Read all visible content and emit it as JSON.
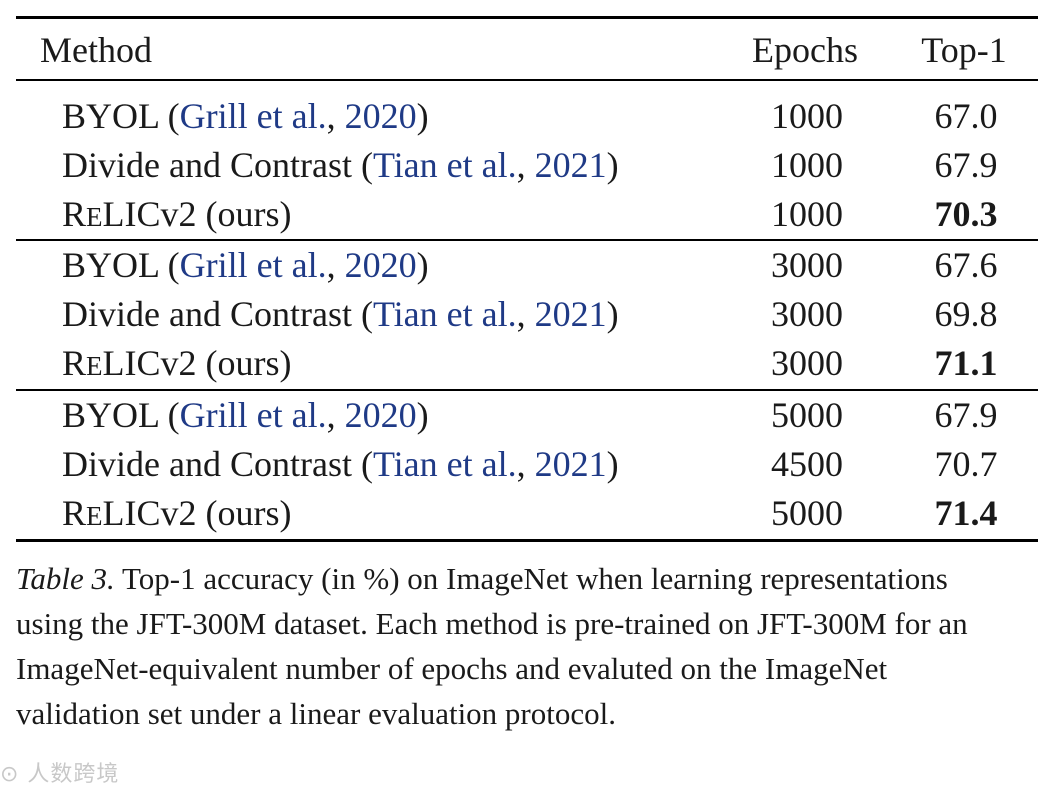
{
  "table": {
    "headers": {
      "method": "Method",
      "epochs": "Epochs",
      "top1": "Top-1"
    },
    "groups": [
      [
        {
          "method": "BYOL",
          "open": " (",
          "cite_a": "Grill et al.",
          "sep": ", ",
          "cite_b": "2020",
          "close": ")",
          "epochs": "1000",
          "top1": "67.0",
          "bold": false
        },
        {
          "method": "Divide and Contrast",
          "open": " (",
          "cite_a": "Tian et al.",
          "sep": ", ",
          "cite_b": "2021",
          "close": ")",
          "epochs": "1000",
          "top1": "67.9",
          "bold": false
        },
        {
          "method_r": "R",
          "method_e": "E",
          "method_rest": "LICv2 (ours)",
          "epochs": "1000",
          "top1": "70.3",
          "bold": true
        }
      ],
      [
        {
          "method": "BYOL",
          "open": " (",
          "cite_a": "Grill et al.",
          "sep": ", ",
          "cite_b": "2020",
          "close": ")",
          "epochs": "3000",
          "top1": "67.6",
          "bold": false
        },
        {
          "method": "Divide and Contrast",
          "open": " (",
          "cite_a": "Tian et al.",
          "sep": ", ",
          "cite_b": "2021",
          "close": ")",
          "epochs": "3000",
          "top1": "69.8",
          "bold": false
        },
        {
          "method_r": "R",
          "method_e": "E",
          "method_rest": "LICv2 (ours)",
          "epochs": "3000",
          "top1": "71.1",
          "bold": true
        }
      ],
      [
        {
          "method": "BYOL",
          "open": " (",
          "cite_a": "Grill et al.",
          "sep": ", ",
          "cite_b": "2020",
          "close": ")",
          "epochs": "5000",
          "top1": "67.9",
          "bold": false
        },
        {
          "method": "Divide and Contrast",
          "open": " (",
          "cite_a": "Tian et al.",
          "sep": ", ",
          "cite_b": "2021",
          "close": ")",
          "epochs": "4500",
          "top1": "70.7",
          "bold": false
        },
        {
          "method_r": "R",
          "method_e": "E",
          "method_rest": "LICv2 (ours)",
          "epochs": "5000",
          "top1": "71.4",
          "bold": true
        }
      ]
    ]
  },
  "caption": {
    "label": "Table 3.",
    "text": " Top-1 accuracy (in %) on ImageNet when learning representations using the JFT-300M dataset. Each method is pre-trained on JFT-300M for an ImageNet-equivalent number of epochs and evaluted on the ImageNet validation set under a linear evaluation protocol."
  },
  "watermark": "⊙ 人数跨境"
}
